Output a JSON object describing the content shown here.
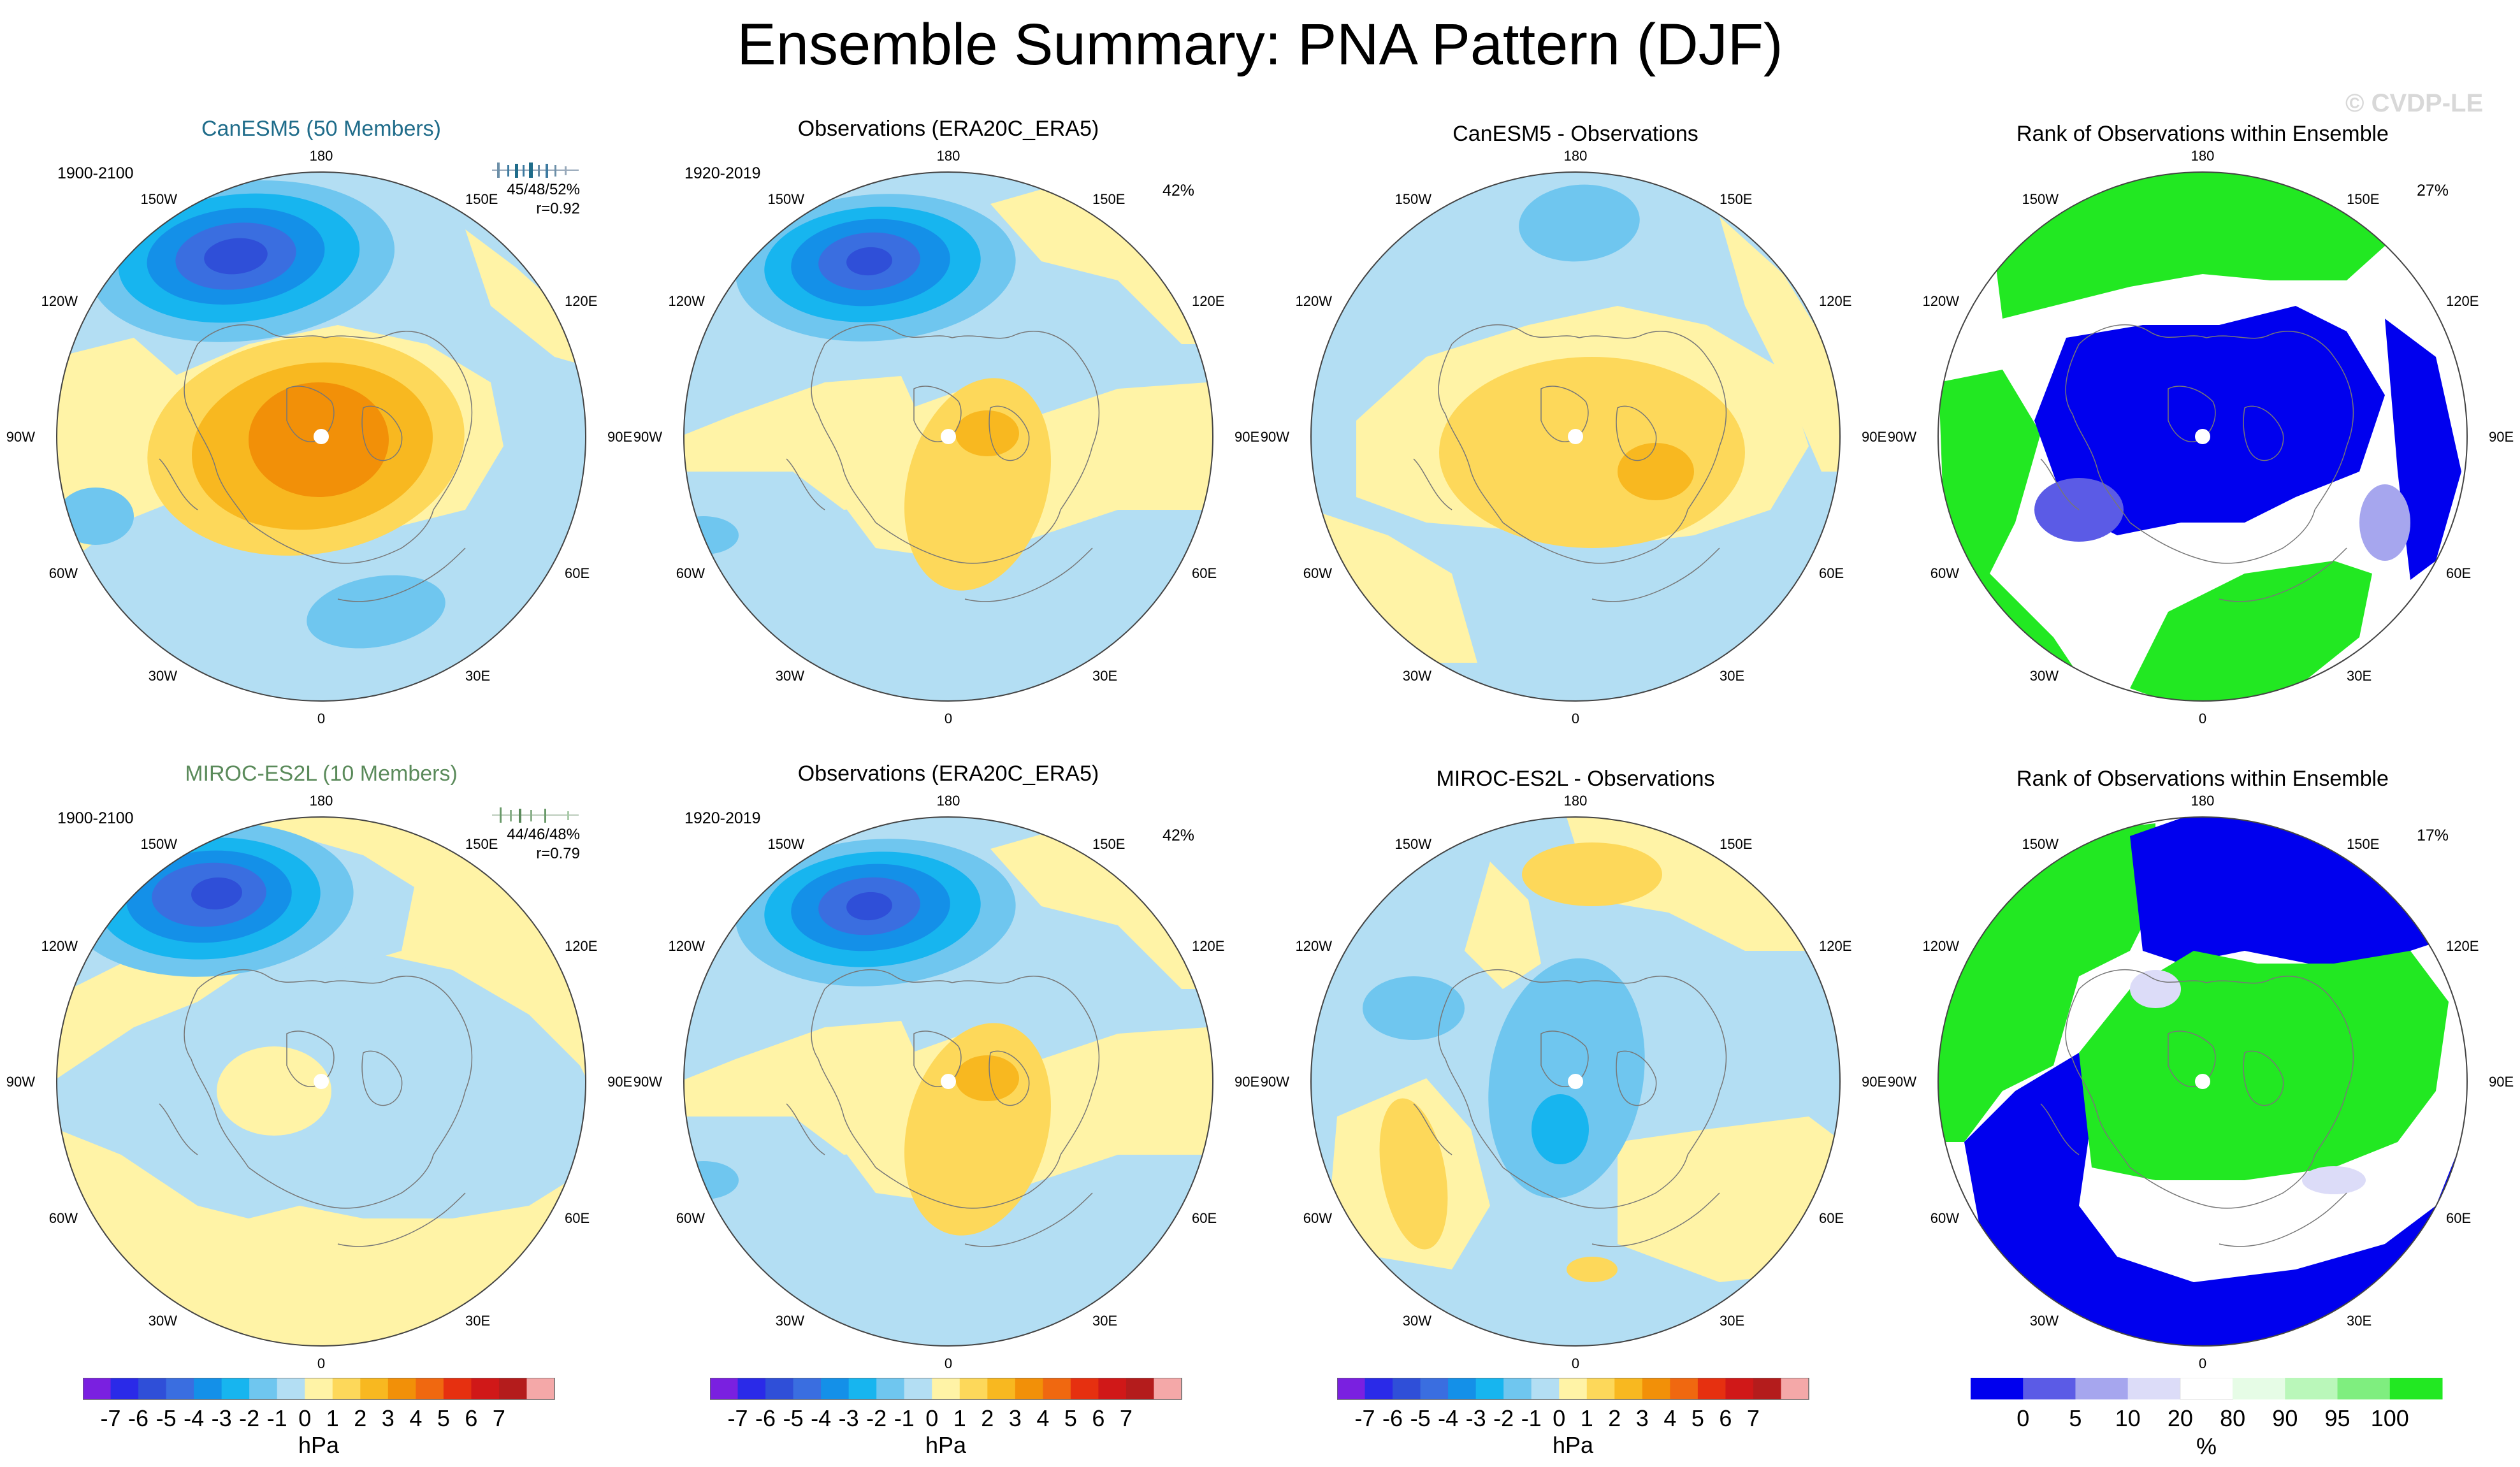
{
  "title": "Ensemble Summary: PNA Pattern (DJF)",
  "watermark": "© CVDP-LE",
  "colors": {
    "neg": [
      "#7a20e0",
      "#2a2ae8",
      "#2f4fd8",
      "#3a6ee0",
      "#1490e8",
      "#17b5ef",
      "#6fc6ef",
      "#b3def3"
    ],
    "pos": [
      "#fff3a6",
      "#fdd85a",
      "#f8b820",
      "#f29008",
      "#f06810",
      "#e63010",
      "#d01818",
      "#b41c1c",
      "#f4a8a8"
    ],
    "rank": [
      "#0000ee",
      "#5b5be6",
      "#a6a6ee",
      "#dcdcf8",
      "#ffffff",
      "#e6fce6",
      "#baf7ba",
      "#7fee7f",
      "#22e822"
    ],
    "ocean": "#b3def3",
    "positive_fill": "#fff3a6"
  },
  "map_labels": {
    "lon_0": "0",
    "lon_30w": "30W",
    "lon_60w": "60W",
    "lon_90w": "90W",
    "lon_120w": "120W",
    "lon_150w": "150W",
    "lon_180": "180",
    "lon_150e": "150E",
    "lon_120e": "120E",
    "lon_90e": "90E",
    "lon_60e": "60E",
    "lon_30e": "30E"
  },
  "panels": {
    "r1c1": {
      "title": "CanESM5 (50 Members)",
      "period": "1900-2100",
      "stats": "45/48/52%",
      "r": "r=0.92"
    },
    "r1c2": {
      "title": "Observations (ERA20C_ERA5)",
      "period": "1920-2019",
      "pct": "42%"
    },
    "r1c3": {
      "title": "CanESM5 - Observations"
    },
    "r1c4": {
      "title": "Rank of Observations within Ensemble",
      "pct": "27%"
    },
    "r2c1": {
      "title": "MIROC-ES2L (10 Members)",
      "period": "1900-2100",
      "stats": "44/46/48%",
      "r": "r=0.79"
    },
    "r2c2": {
      "title": "Observations (ERA20C_ERA5)",
      "period": "1920-2019",
      "pct": "42%"
    },
    "r2c3": {
      "title": "MIROC-ES2L - Observations"
    },
    "r2c4": {
      "title": "Rank of Observations within Ensemble",
      "pct": "17%"
    }
  },
  "colorbar_hpa": {
    "ticks": [
      "-7",
      "-6",
      "-5",
      "-4",
      "-3",
      "-2",
      "-1",
      "0",
      "1",
      "2",
      "3",
      "4",
      "5",
      "6",
      "7"
    ],
    "unit": "hPa"
  },
  "colorbar_rank": {
    "ticks": [
      "0",
      "5",
      "10",
      "20",
      "80",
      "90",
      "95",
      "100"
    ],
    "unit": "%"
  }
}
